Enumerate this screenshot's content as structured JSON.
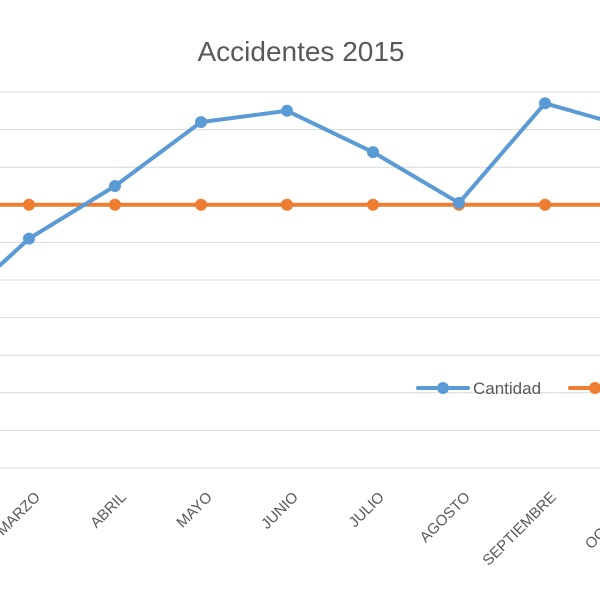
{
  "chart_data": {
    "type": "line",
    "title": "Accidentes 2015",
    "categories": [
      "MARZO",
      "ABRIL",
      "MAYO",
      "JUNIO",
      "JULIO",
      "AGOSTO",
      "SEPTIEMBRE",
      "OCTUBRE"
    ],
    "series": [
      {
        "name": "Cantidad",
        "color": "#5b9bd5",
        "values": [
          8.1,
          9.5,
          11.2,
          11.5,
          10.4,
          9.05,
          11.7,
          11.05
        ]
      },
      {
        "name": "",
        "color": "#ed7d31",
        "values": [
          9.0,
          9.0,
          9.0,
          9.0,
          9.0,
          9.0,
          9.0,
          9.0
        ]
      }
    ],
    "grid": true,
    "legend_position": "right"
  }
}
